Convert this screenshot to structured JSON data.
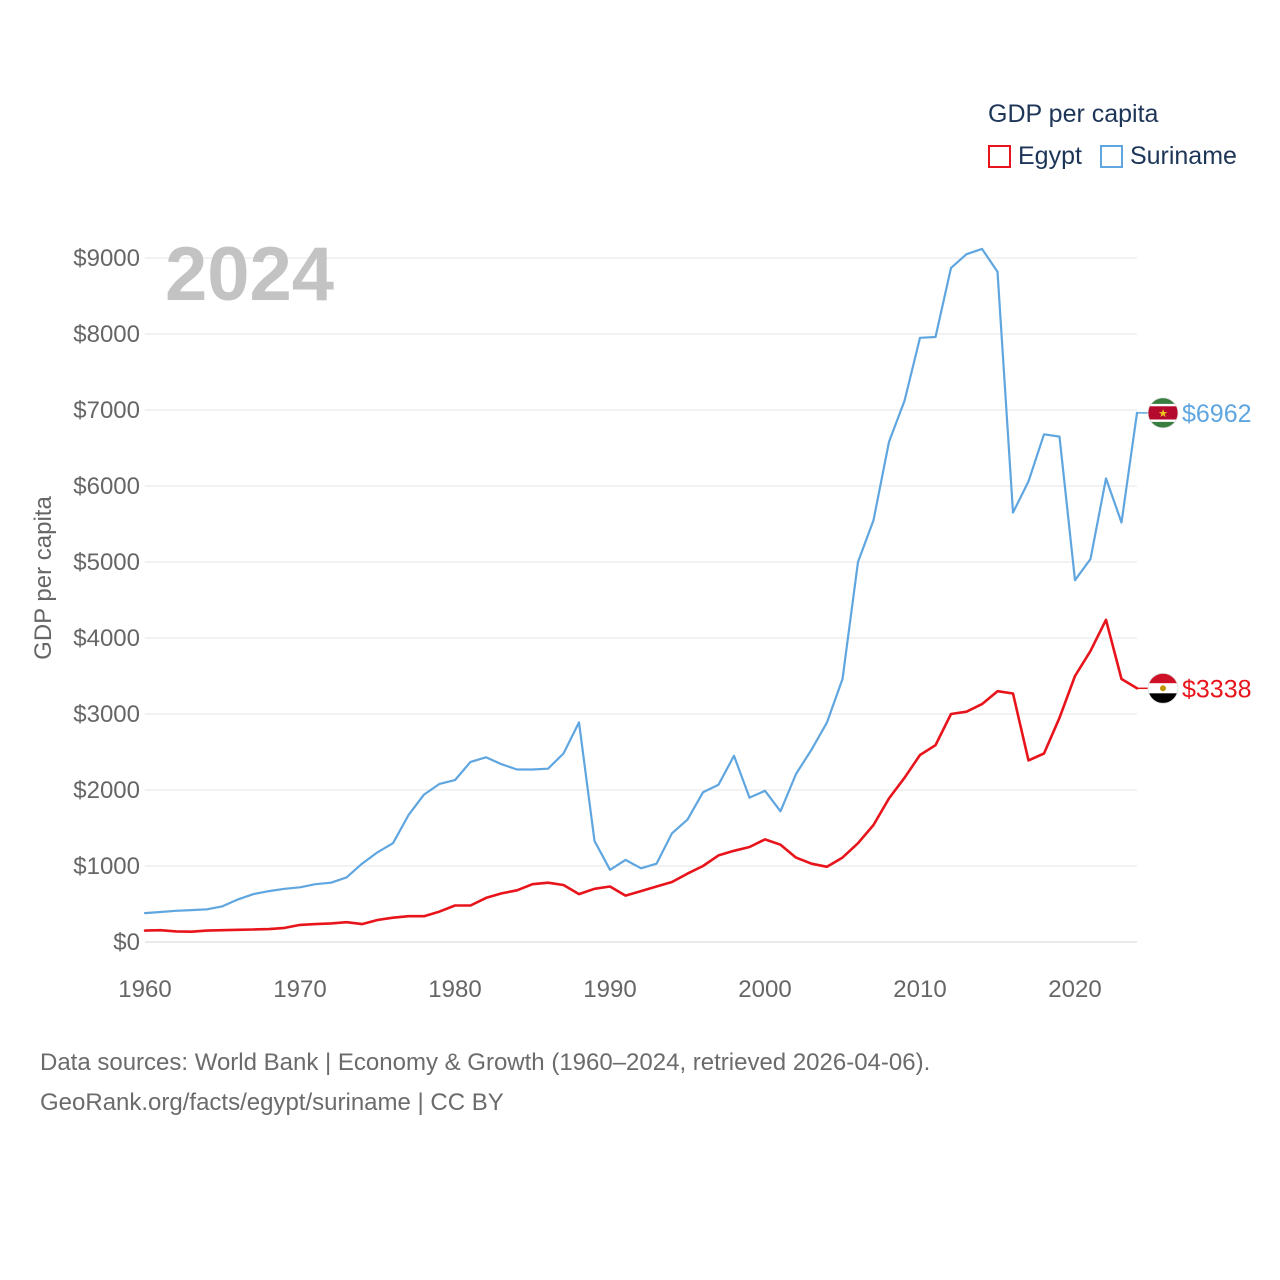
{
  "chart_data": {
    "type": "line",
    "title": "GDP per capita",
    "year_label": "2024",
    "xlabel": "",
    "ylabel": "GDP per capita",
    "xlim": [
      1960,
      2024
    ],
    "ylim": [
      0,
      9000
    ],
    "x_ticks": [
      1960,
      1970,
      1980,
      1990,
      2000,
      2010,
      2020
    ],
    "y_ticks": [
      0,
      1000,
      2000,
      3000,
      4000,
      5000,
      6000,
      7000,
      8000,
      9000
    ],
    "y_tick_labels": [
      "$0",
      "$1000",
      "$2000",
      "$3000",
      "$4000",
      "$5000",
      "$6000",
      "$7000",
      "$8000",
      "$9000"
    ],
    "grid": true,
    "legend_position": "top-right",
    "x": [
      1960,
      1961,
      1962,
      1963,
      1964,
      1965,
      1966,
      1967,
      1968,
      1969,
      1970,
      1971,
      1972,
      1973,
      1974,
      1975,
      1976,
      1977,
      1978,
      1979,
      1980,
      1981,
      1982,
      1983,
      1984,
      1985,
      1986,
      1987,
      1988,
      1989,
      1990,
      1991,
      1992,
      1993,
      1994,
      1995,
      1996,
      1997,
      1998,
      1999,
      2000,
      2001,
      2002,
      2003,
      2004,
      2005,
      2006,
      2007,
      2008,
      2009,
      2010,
      2011,
      2012,
      2013,
      2014,
      2015,
      2016,
      2017,
      2018,
      2019,
      2020,
      2021,
      2022,
      2023,
      2024
    ],
    "series": [
      {
        "name": "Egypt",
        "color": "#e8141b",
        "end_label": "$3338",
        "values": [
          150,
          155,
          140,
          135,
          150,
          155,
          160,
          165,
          170,
          185,
          225,
          235,
          245,
          260,
          235,
          290,
          320,
          340,
          340,
          400,
          480,
          480,
          580,
          640,
          680,
          760,
          780,
          750,
          630,
          700,
          730,
          610,
          670,
          730,
          790,
          900,
          1000,
          1140,
          1200,
          1250,
          1350,
          1280,
          1110,
          1030,
          990,
          1110,
          1300,
          1540,
          1890,
          2160,
          2460,
          2590,
          3000,
          3030,
          3130,
          3300,
          3270,
          2390,
          2480,
          2950,
          3500,
          3830,
          4240,
          3460,
          3338
        ]
      },
      {
        "name": "Suriname",
        "color": "#5fa6e0",
        "end_label": "$6962",
        "values": [
          380,
          395,
          410,
          420,
          430,
          470,
          560,
          630,
          670,
          700,
          720,
          760,
          780,
          850,
          1030,
          1180,
          1300,
          1670,
          1940,
          2080,
          2130,
          2370,
          2430,
          2340,
          2270,
          2270,
          2280,
          2480,
          2890,
          1330,
          950,
          1080,
          970,
          1030,
          1430,
          1610,
          1970,
          2070,
          2450,
          1900,
          1990,
          1720,
          2210,
          2530,
          2890,
          3460,
          5000,
          5550,
          6580,
          7120,
          7950,
          7960,
          8870,
          9050,
          9120,
          8820,
          5650,
          6060,
          6680,
          6650,
          4760,
          5040,
          6100,
          5520,
          6962
        ]
      }
    ]
  },
  "flags": {
    "suriname": [
      "#377e3f",
      "#ffffff",
      "#b40a2d",
      "#ecc81d"
    ],
    "egypt": [
      "#ce1126",
      "#ffffff",
      "#000000",
      "#c09300"
    ]
  },
  "footer": {
    "line1": "Data sources: World Bank | Economy & Growth (1960–2024, retrieved 2026-04-06).",
    "line2": "GeoRank.org/facts/egypt/suriname | CC BY"
  }
}
